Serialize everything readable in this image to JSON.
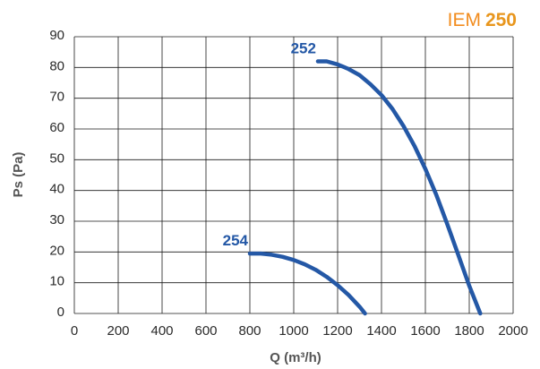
{
  "chart_data": {
    "type": "line",
    "title_prefix": "IEM",
    "title_model": "250",
    "xlabel": "Q (m³/h)",
    "ylabel": "Ps (Pa)",
    "xlim": [
      0,
      2000
    ],
    "ylim": [
      0,
      90
    ],
    "xticks": [
      "0",
      "200",
      "400",
      "600",
      "800",
      "1000",
      "1200",
      "1400",
      "1600",
      "1800",
      "2000"
    ],
    "yticks": [
      "0",
      "10",
      "20",
      "30",
      "40",
      "50",
      "60",
      "70",
      "80",
      "90"
    ],
    "grid": true,
    "colors": {
      "curve": "#2458a6",
      "title_prefix": "#f28c1e",
      "title_model": "#e8961d",
      "grid": "#1a1a1a"
    },
    "series": [
      {
        "name": "252",
        "x": [
          1110,
          1150,
          1200,
          1250,
          1300,
          1350,
          1400,
          1450,
          1500,
          1550,
          1600,
          1650,
          1700,
          1750,
          1800,
          1850
        ],
        "y": [
          82,
          82,
          81,
          79.5,
          77.5,
          74.5,
          71,
          66.5,
          61,
          54.5,
          47,
          38.5,
          29,
          19,
          9,
          0
        ]
      },
      {
        "name": "254",
        "x": [
          800,
          850,
          900,
          950,
          1000,
          1050,
          1100,
          1150,
          1200,
          1250,
          1300,
          1325
        ],
        "y": [
          19.5,
          19.5,
          19.1,
          18.4,
          17.4,
          16,
          14.2,
          11.9,
          9.2,
          6,
          2.2,
          0
        ]
      }
    ]
  }
}
